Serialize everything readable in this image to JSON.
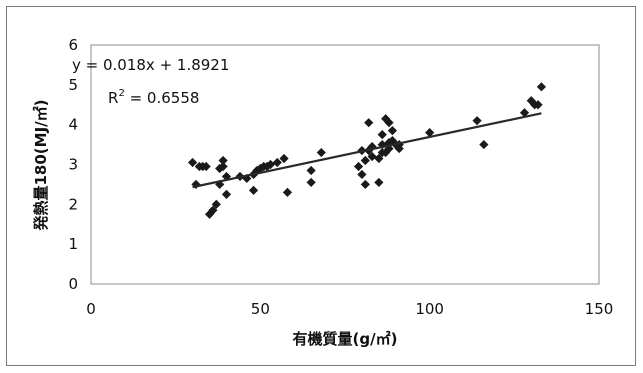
{
  "chart_data": {
    "type": "scatter",
    "title": "",
    "xlabel": "有機質量(g/㎡)",
    "ylabel": "発熱量180(MJ/㎡)",
    "xlim": [
      0,
      150
    ],
    "ylim": [
      0,
      6
    ],
    "x_ticks": [
      "0",
      "50",
      "100",
      "150"
    ],
    "y_ticks": [
      "0",
      "1",
      "2",
      "3",
      "4",
      "5",
      "6"
    ],
    "grid": false,
    "legend": "none",
    "marker_color": "#1a1a1a",
    "trendline": {
      "equation": "y = 0.018x + 1.8921",
      "r2_prefix": "R",
      "r2_exp": "2",
      "r2_suffix": " = 0.6558",
      "slope": 0.018,
      "intercept": 1.8921,
      "x_range": [
        30,
        133
      ]
    },
    "series": [
      {
        "x": [
          30,
          31,
          32,
          33,
          34,
          35,
          36,
          37,
          38,
          38,
          39,
          39,
          40,
          40,
          44,
          46,
          48,
          48,
          49,
          50,
          51,
          52,
          53,
          55,
          57,
          58,
          65,
          65,
          68,
          79,
          80,
          80,
          81,
          81,
          82,
          82,
          83,
          83,
          85,
          85,
          86,
          86,
          86,
          87,
          87,
          88,
          88,
          88,
          89,
          89,
          90,
          91,
          91,
          100,
          114,
          116,
          128,
          130,
          131,
          132,
          133
        ],
        "y": [
          3.05,
          2.5,
          2.95,
          2.95,
          2.95,
          1.75,
          1.85,
          2.0,
          2.5,
          2.9,
          2.95,
          3.1,
          2.7,
          2.25,
          2.7,
          2.65,
          2.75,
          2.35,
          2.85,
          2.9,
          2.95,
          2.95,
          3.0,
          3.05,
          3.15,
          2.3,
          2.55,
          2.85,
          3.3,
          2.95,
          3.35,
          2.75,
          2.5,
          3.1,
          3.35,
          4.05,
          3.2,
          3.45,
          2.55,
          3.15,
          3.3,
          3.5,
          3.75,
          4.15,
          3.3,
          3.4,
          3.55,
          4.05,
          3.6,
          3.85,
          3.5,
          3.5,
          3.4,
          3.8,
          4.1,
          3.5,
          4.3,
          4.6,
          4.5,
          4.5,
          4.95
        ]
      }
    ]
  }
}
